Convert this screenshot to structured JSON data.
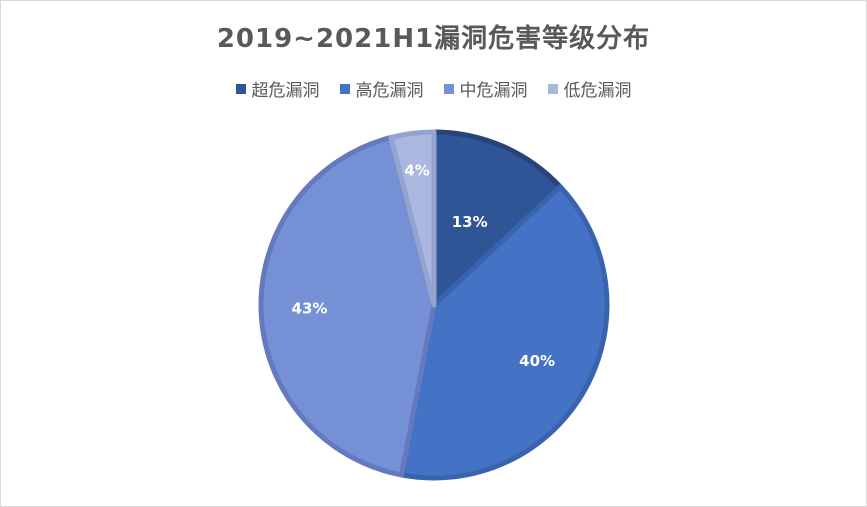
{
  "chart_data": {
    "type": "pie",
    "title": "2019~2021H1漏洞危害等级分布",
    "legend_position": "top",
    "categories": [
      "超危漏洞",
      "高危漏洞",
      "中危漏洞",
      "低危漏洞"
    ],
    "values": [
      13,
      40,
      43,
      4
    ],
    "value_labels": [
      "13%",
      "40%",
      "43%",
      "4%"
    ],
    "colors": [
      "#2f5597",
      "#4472c4",
      "#7590d4",
      "#aab8df"
    ],
    "edge_colors": [
      "#264478",
      "#3a63ad",
      "#6479bf",
      "#94a4d1"
    ]
  }
}
